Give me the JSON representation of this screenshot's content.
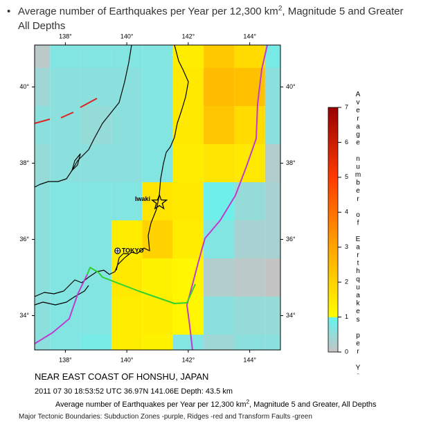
{
  "header": {
    "title": "Average number of Earthquakes per Year per 12,300 km",
    "title_sup": "2",
    "title_end": ", Magnitude 5 and Greater",
    "subtitle": "All Depths"
  },
  "map": {
    "xlim": [
      137,
      145
    ],
    "ylim": [
      33.1,
      41.1
    ],
    "xticks": [
      {
        "value": 138,
        "label": "138°"
      },
      {
        "value": 140,
        "label": "140°"
      },
      {
        "value": 142,
        "label": "142°"
      },
      {
        "value": 144,
        "label": "144°"
      }
    ],
    "yticks": [
      {
        "value": 34,
        "label": "34°"
      },
      {
        "value": 36,
        "label": "36°"
      },
      {
        "value": 38,
        "label": "38°"
      },
      {
        "value": 40,
        "label": "40°"
      }
    ],
    "lon_edges": [
      137,
      137.5,
      138.5,
      139.5,
      140.5,
      141.5,
      142.5,
      143.5,
      144.5,
      145
    ],
    "lat_edges": [
      41.1,
      40.5,
      39.5,
      38.5,
      37.5,
      36.5,
      35.5,
      34.5,
      33.5,
      33.1
    ],
    "values": [
      [
        0.1,
        0.7,
        0.7,
        0.7,
        0.7,
        1.4,
        2.2,
        1.8,
        0.8
      ],
      [
        0.4,
        0.6,
        0.6,
        0.6,
        0.7,
        1.5,
        2.5,
        2.4,
        0.6
      ],
      [
        0.6,
        0.6,
        0.5,
        0.6,
        0.7,
        1.5,
        2.3,
        1.8,
        0.6
      ],
      [
        0.5,
        0.6,
        0.6,
        0.6,
        0.7,
        1.4,
        1.6,
        1.5,
        0.2
      ],
      [
        0.6,
        0.7,
        0.7,
        0.7,
        1.6,
        1.5,
        0.9,
        0.5,
        0.3
      ],
      [
        0.6,
        0.7,
        0.7,
        1.4,
        2.0,
        1.4,
        0.7,
        0.3,
        0.3
      ],
      [
        0.6,
        0.7,
        0.7,
        1.5,
        1.3,
        1.2,
        0.2,
        0.1,
        0.0
      ],
      [
        0.6,
        0.7,
        0.7,
        1.4,
        1.4,
        1.2,
        0.6,
        0.5,
        0.5
      ],
      [
        0.6,
        0.7,
        0.8,
        1.4,
        1.3,
        0.7,
        0.4,
        0.6,
        0.6
      ]
    ],
    "places": [
      {
        "name": "Iwaki",
        "lon": 140.9,
        "lat": 37.05
      },
      {
        "name": "TOKYO",
        "lon": 139.7,
        "lat": 35.7
      }
    ],
    "epicenter": {
      "lon": 141.06,
      "lat": 36.97
    }
  },
  "colorbar": {
    "label": "Average number of Earthquakes per Year",
    "lim": [
      0,
      7
    ],
    "ticks": [
      0,
      1,
      2,
      3,
      4,
      5,
      6,
      7
    ],
    "colors": [
      {
        "value": 0,
        "color": "#c4c4c4"
      },
      {
        "value": 0.99,
        "color": "#66f3ee"
      },
      {
        "value": 1,
        "color": "#ffff00"
      },
      {
        "value": 3,
        "color": "#ffa500"
      },
      {
        "value": 5,
        "color": "#ff3a00"
      },
      {
        "value": 7,
        "color": "#990000"
      }
    ]
  },
  "captions": {
    "region": "NEAR EAST COAST OF HONSHU, JAPAN",
    "event": "2011 07 30 18:53:52 UTC 36.97N 141.06E Depth: 43.5 km",
    "desc": "Average number of Earthquakes per Year per 12,300 km",
    "desc_sup": "2",
    "desc_end": ", Magnitude 5 and Greater, All Depths",
    "boundaries": "Major Tectonic Boundaries: Subduction Zones -purple, Ridges -red and Transform Faults -green"
  }
}
